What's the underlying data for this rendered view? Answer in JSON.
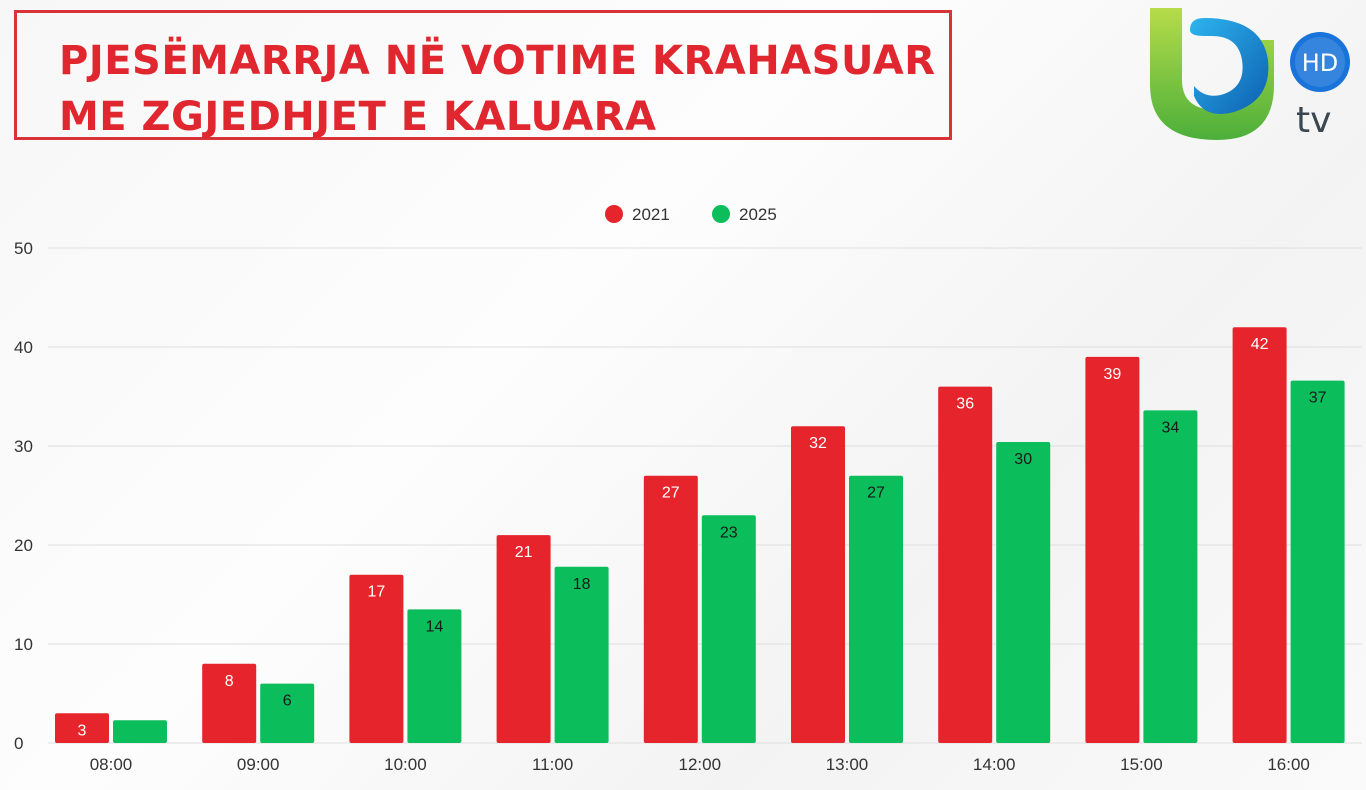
{
  "header": {
    "title_line1": "PJESËMARRJA NË VOTIME KRAHASUAR",
    "title_line2": "ME ZGJEDHJET E KALUARA"
  },
  "logo": {
    "badge_text": "HD",
    "tv_text": "tv",
    "colors": {
      "green": "#8cc63f",
      "blue": "#1a8fd6",
      "badge": "#1a73d9"
    }
  },
  "chart_data": {
    "type": "bar",
    "categories": [
      "08:00",
      "09:00",
      "10:00",
      "11:00",
      "12:00",
      "13:00",
      "14:00",
      "15:00",
      "16:00"
    ],
    "series": [
      {
        "name": "2021",
        "color": "#e6242b",
        "label_color": "#ffffff",
        "values": [
          3,
          8,
          17,
          21,
          27,
          32,
          36,
          39,
          42
        ],
        "labels": [
          "3",
          "8",
          "17",
          "21",
          "27",
          "32",
          "36",
          "39",
          "42"
        ]
      },
      {
        "name": "2025",
        "color": "#0bbd5b",
        "label_color": "#1a1a1a",
        "values": [
          2.3,
          6,
          13.5,
          17.8,
          23,
          27,
          30.4,
          33.6,
          36.6
        ],
        "labels": [
          "",
          "6",
          "14",
          "18",
          "23",
          "27",
          "30",
          "34",
          "37"
        ]
      }
    ],
    "yticks": [
      0,
      10,
      20,
      30,
      40,
      50
    ],
    "ylim": [
      0,
      50
    ],
    "grid": true,
    "legend_position": "top-center"
  }
}
